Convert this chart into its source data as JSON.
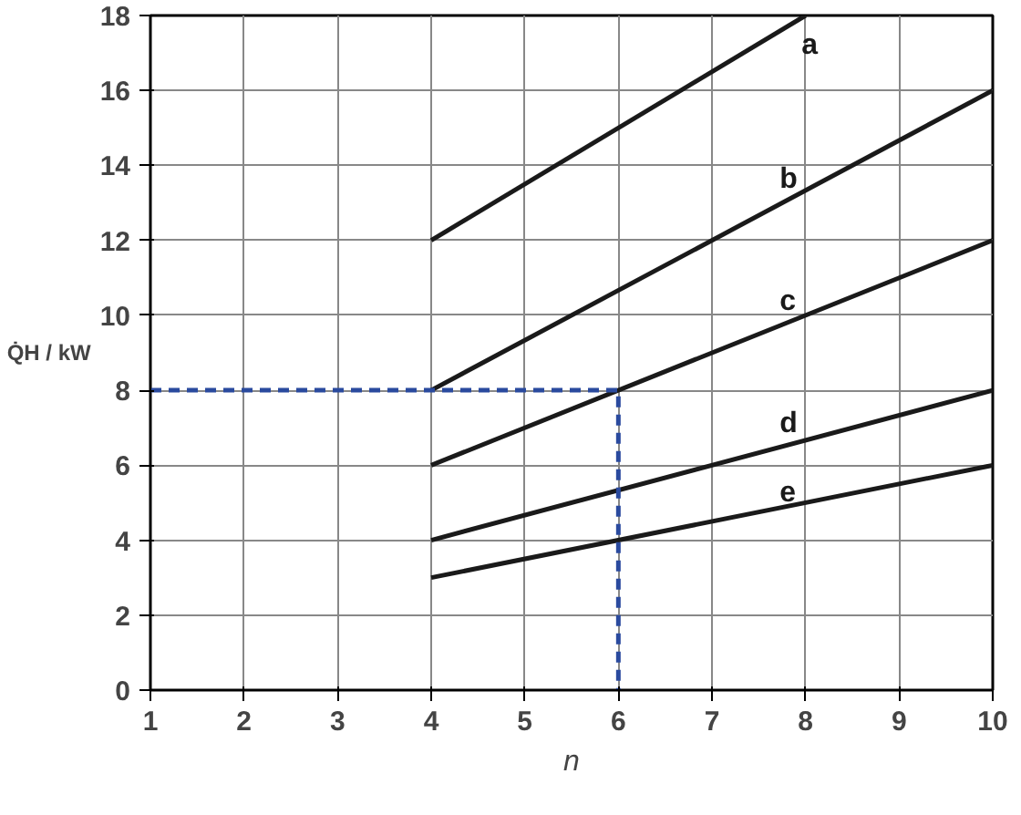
{
  "chart_data": {
    "type": "line",
    "xlabel": "n",
    "ylabel": "Q̇H / kW",
    "xlim": [
      1,
      10
    ],
    "ylim": [
      0,
      18
    ],
    "xticks": [
      1,
      2,
      3,
      4,
      5,
      6,
      7,
      8,
      9,
      10
    ],
    "yticks": [
      0,
      2,
      4,
      6,
      8,
      10,
      12,
      14,
      16,
      18
    ],
    "grid": true,
    "marker": "none",
    "series": [
      {
        "name": "a",
        "color": "#1a1a1a",
        "x": [
          4,
          8
        ],
        "values": [
          12,
          18
        ],
        "line_style": "solid"
      },
      {
        "name": "b",
        "color": "#1a1a1a",
        "x": [
          4,
          10
        ],
        "values": [
          8,
          16
        ],
        "line_style": "solid"
      },
      {
        "name": "c",
        "color": "#1a1a1a",
        "x": [
          4,
          10
        ],
        "values": [
          6,
          12
        ],
        "line_style": "solid"
      },
      {
        "name": "d",
        "color": "#1a1a1a",
        "x": [
          4,
          10
        ],
        "values": [
          4,
          8
        ],
        "line_style": "solid"
      },
      {
        "name": "e",
        "color": "#1a1a1a",
        "x": [
          4,
          10
        ],
        "values": [
          3,
          6
        ],
        "line_style": "solid"
      },
      {
        "color": "#2a4a9e",
        "x": [
          1,
          6,
          6
        ],
        "values": [
          8,
          8,
          0
        ],
        "line_style": "dashed"
      }
    ]
  }
}
